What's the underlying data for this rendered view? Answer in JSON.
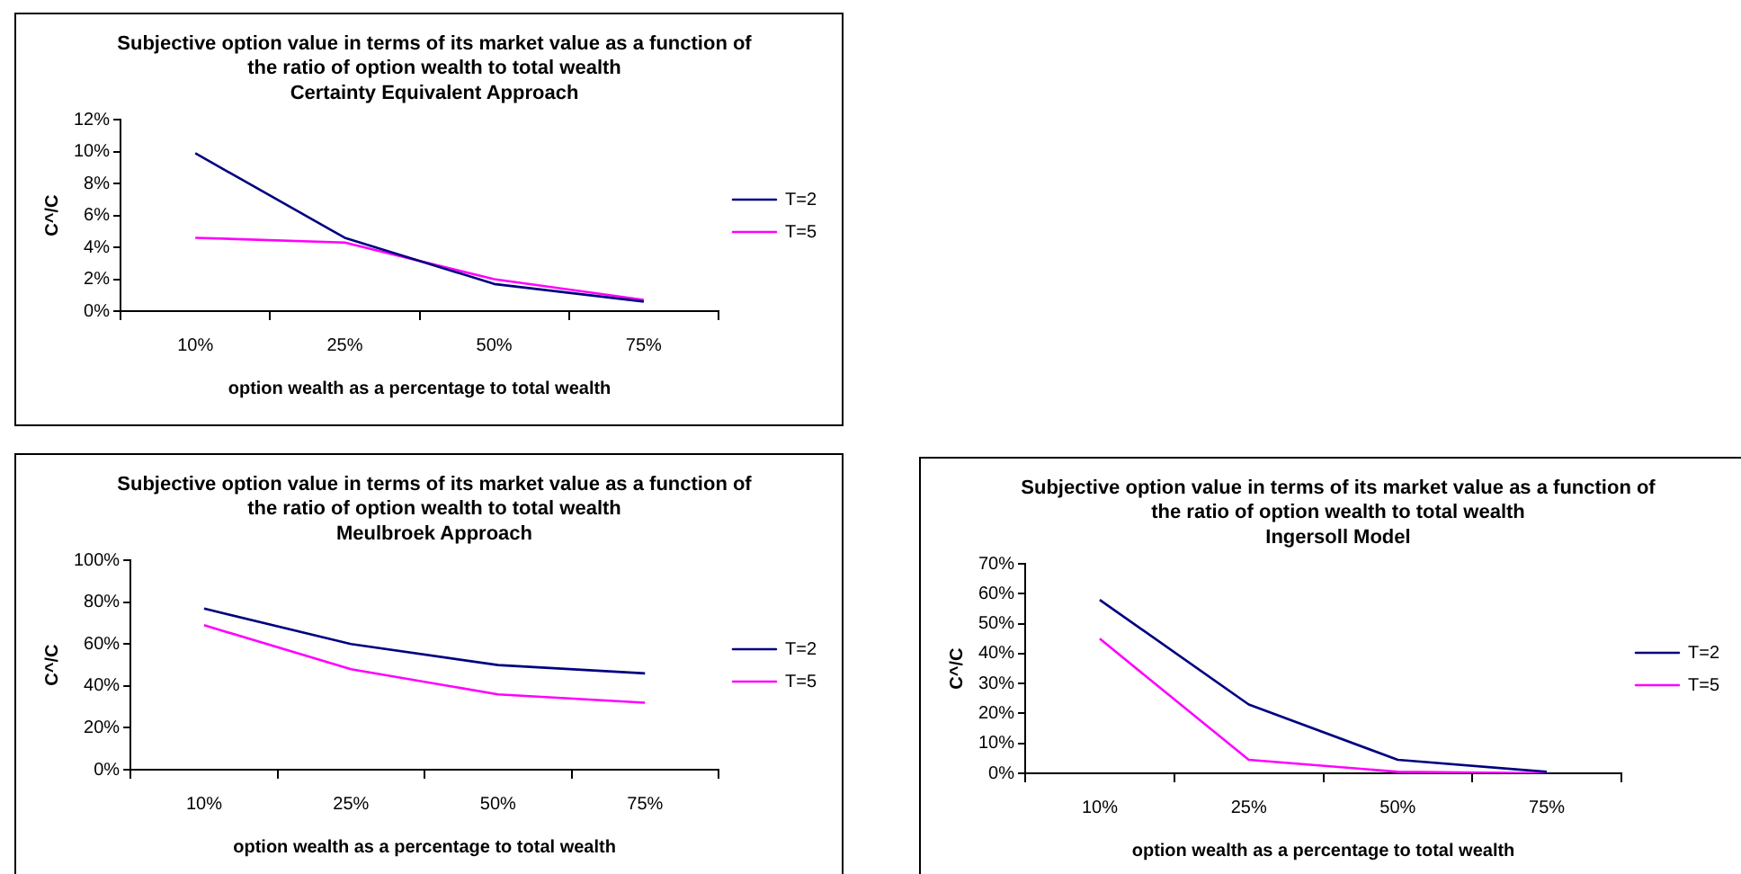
{
  "chart_data": [
    {
      "type": "line",
      "title": "Subjective option value in terms of its market value as a function of\nthe ratio of option wealth to total wealth",
      "subtitle": "Certainty Equivalent Approach",
      "xlabel": "option wealth as a percentage to total wealth",
      "ylabel": "C^/C",
      "categories": [
        "10%",
        "25%",
        "50%",
        "75%"
      ],
      "series": [
        {
          "name": "T=2",
          "color": "#000080",
          "values": [
            9.9,
            4.6,
            1.7,
            0.6
          ]
        },
        {
          "name": "T=5",
          "color": "#ff00ff",
          "values": [
            4.6,
            4.3,
            2.0,
            0.7
          ]
        }
      ],
      "ylim": [
        0,
        12
      ],
      "yticks": [
        {
          "value": 0,
          "label": "0%"
        },
        {
          "value": 2,
          "label": "2%"
        },
        {
          "value": 4,
          "label": "4%"
        },
        {
          "value": 6,
          "label": "6%"
        },
        {
          "value": 8,
          "label": "8%"
        },
        {
          "value": 10,
          "label": "10%"
        },
        {
          "value": 12,
          "label": "12%"
        }
      ],
      "grid": false,
      "legend": "right",
      "marker": "none"
    },
    {
      "type": "line",
      "title": "Subjective option value in terms of its market value as a function of\nthe ratio of option wealth to total wealth",
      "subtitle": "Meulbroek Approach",
      "xlabel": "option wealth as a percentage to total wealth",
      "ylabel": "C^/C",
      "categories": [
        "10%",
        "25%",
        "50%",
        "75%"
      ],
      "series": [
        {
          "name": "T=2",
          "color": "#000080",
          "values": [
            77,
            60,
            50,
            46
          ]
        },
        {
          "name": "T=5",
          "color": "#ff00ff",
          "values": [
            69,
            48,
            36,
            32
          ]
        }
      ],
      "ylim": [
        0,
        100
      ],
      "yticks": [
        {
          "value": 0,
          "label": "0%"
        },
        {
          "value": 20,
          "label": "20%"
        },
        {
          "value": 40,
          "label": "40%"
        },
        {
          "value": 60,
          "label": "60%"
        },
        {
          "value": 80,
          "label": "80%"
        },
        {
          "value": 100,
          "label": "100%"
        }
      ],
      "grid": false,
      "legend": "right",
      "marker": "none"
    },
    {
      "type": "line",
      "title": "Subjective option value in terms of its market value as a function of\nthe ratio of option wealth to total wealth",
      "subtitle": "Ingersoll Model",
      "xlabel": "option wealth as a percentage to total wealth",
      "ylabel": "C^/C",
      "categories": [
        "10%",
        "25%",
        "50%",
        "75%"
      ],
      "series": [
        {
          "name": "T=2",
          "color": "#000080",
          "values": [
            58,
            23,
            4.5,
            0.5
          ]
        },
        {
          "name": "T=5",
          "color": "#ff00ff",
          "values": [
            45,
            4.5,
            0.5,
            0
          ]
        }
      ],
      "ylim": [
        0,
        70
      ],
      "yticks": [
        {
          "value": 0,
          "label": "0%"
        },
        {
          "value": 10,
          "label": "10%"
        },
        {
          "value": 20,
          "label": "20%"
        },
        {
          "value": 30,
          "label": "30%"
        },
        {
          "value": 40,
          "label": "40%"
        },
        {
          "value": 50,
          "label": "50%"
        },
        {
          "value": 60,
          "label": "60%"
        },
        {
          "value": 70,
          "label": "70%"
        }
      ],
      "grid": false,
      "legend": "right",
      "marker": "none"
    }
  ]
}
